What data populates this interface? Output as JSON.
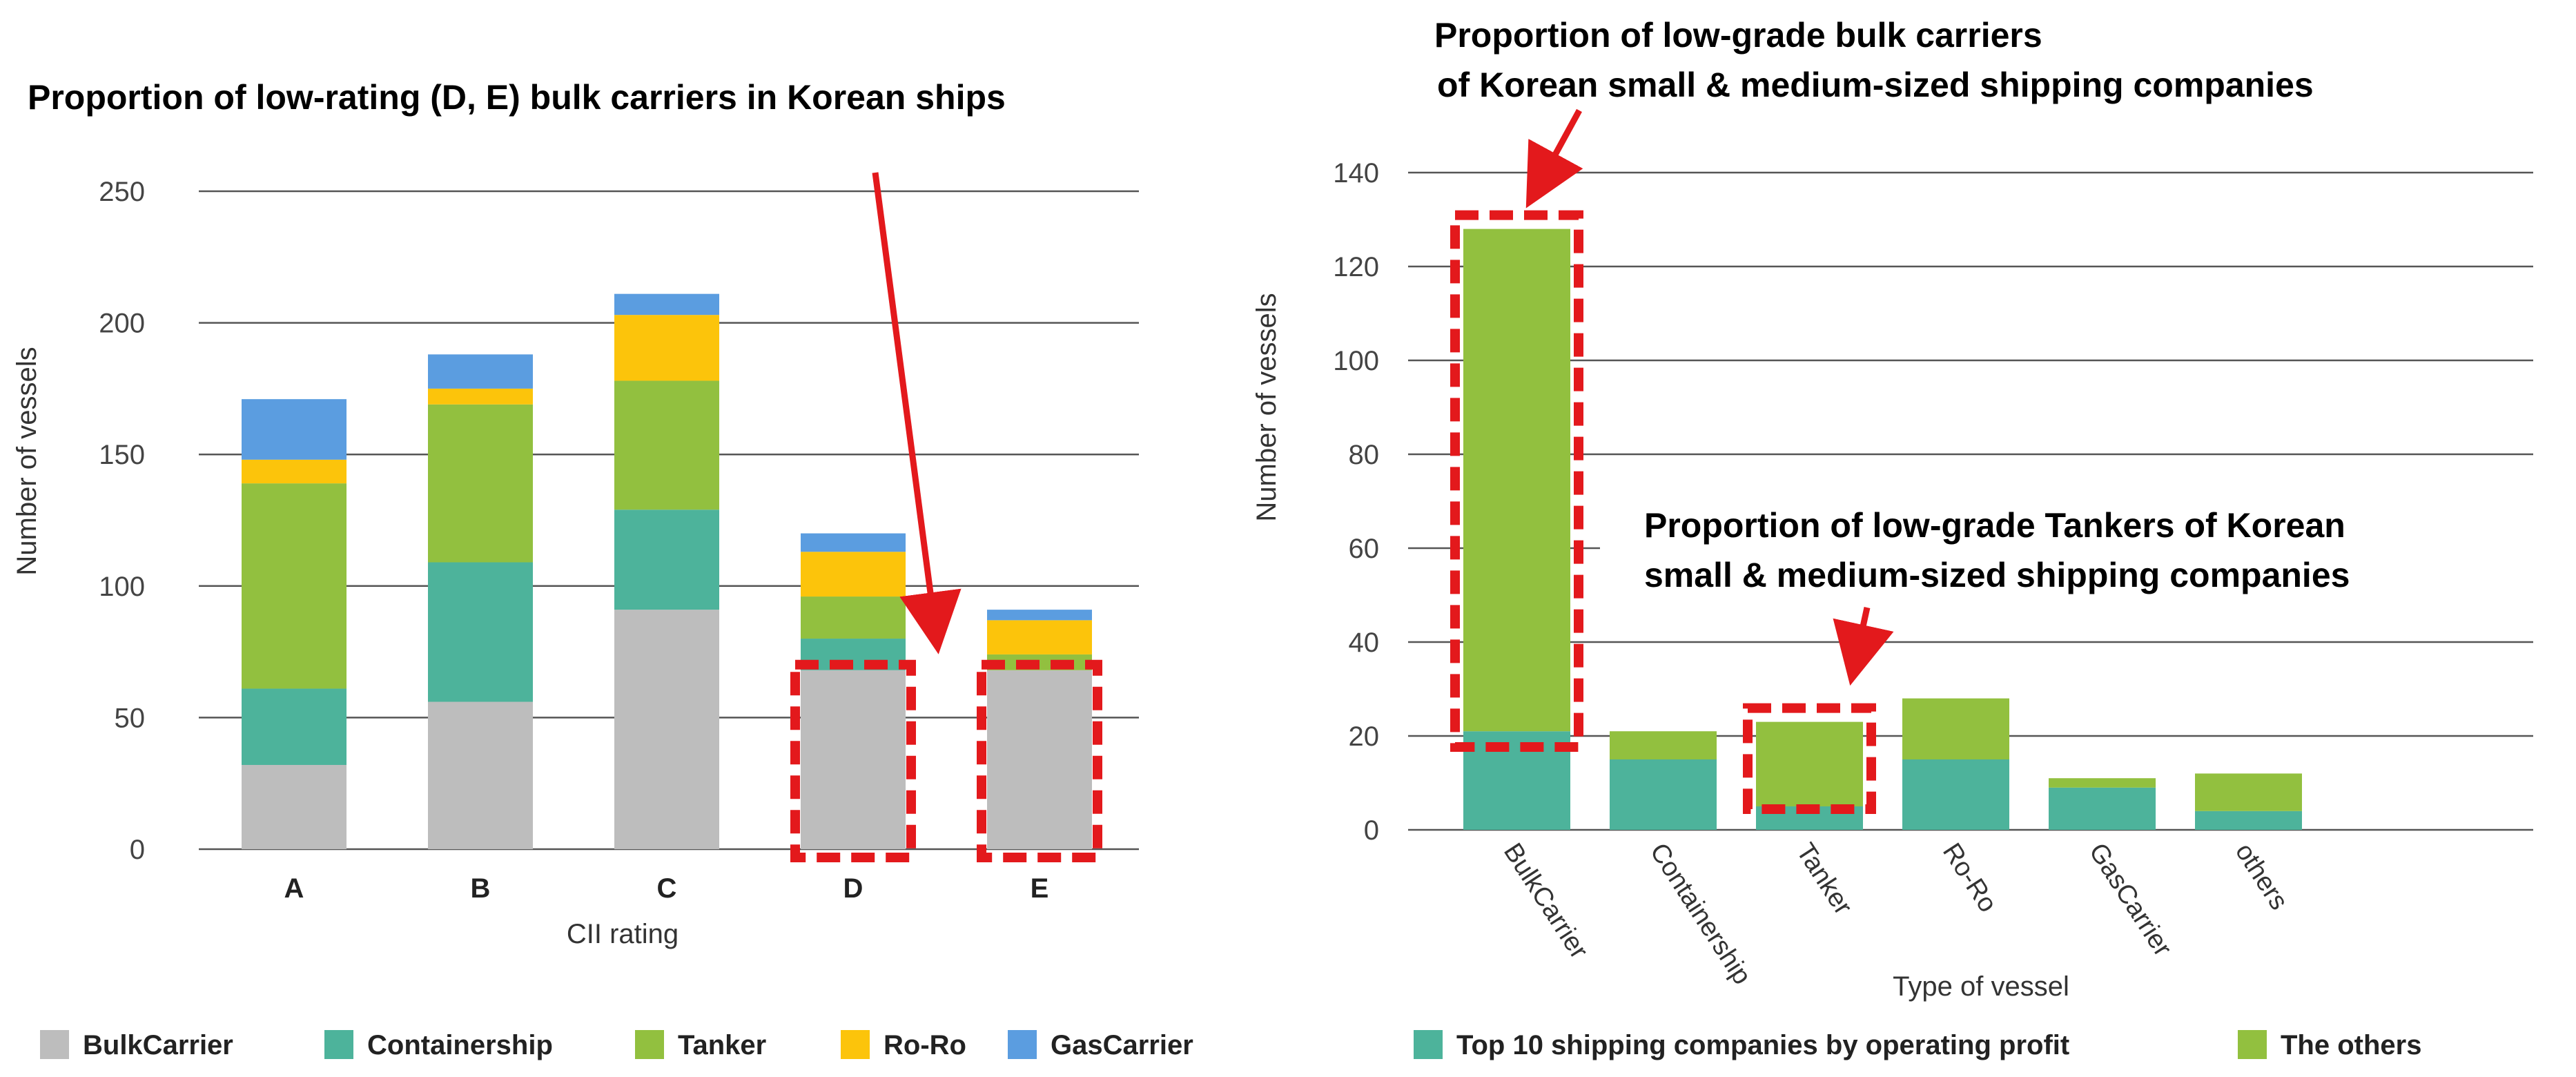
{
  "chart_data": [
    {
      "type": "bar",
      "stacked": true,
      "title": "Proportion of low-rating (D, E) bulk carriers in Korean ships",
      "xlabel": "CII rating",
      "ylabel": "Number of vessels",
      "ylim": [
        0,
        250
      ],
      "yticks": [
        "0",
        "50",
        "100",
        "150",
        "200",
        "250"
      ],
      "categories": [
        "A",
        "B",
        "C",
        "D",
        "E"
      ],
      "series": [
        {
          "name": "BulkCarrier",
          "color": "#bdbdbd",
          "values": [
            32,
            56,
            91,
            68,
            68
          ]
        },
        {
          "name": "Containership",
          "color": "#4db39b",
          "values": [
            29,
            53,
            38,
            12,
            0
          ]
        },
        {
          "name": "Tanker",
          "color": "#92c03f",
          "values": [
            78,
            60,
            49,
            16,
            6
          ]
        },
        {
          "name": "Ro-Ro",
          "color": "#fcc40b",
          "values": [
            9,
            6,
            25,
            17,
            13
          ]
        },
        {
          "name": "GasCarrier",
          "color": "#5b9de0",
          "values": [
            23,
            13,
            8,
            7,
            4
          ]
        }
      ],
      "grid": true,
      "legend": "bottom",
      "highlight_categories": [
        "D",
        "E"
      ]
    },
    {
      "type": "bar",
      "stacked": true,
      "xlabel": "Type of vessel",
      "ylabel": "Number of vessels",
      "ylim": [
        0,
        140
      ],
      "yticks": [
        "0",
        "20",
        "40",
        "60",
        "80",
        "100",
        "120",
        "140"
      ],
      "categories": [
        "BulkCarrier",
        "Containership",
        "Tanker",
        "Ro-Ro",
        "GasCarrier",
        "others"
      ],
      "series": [
        {
          "name": "Top 10 shipping companies by operating profit",
          "color": "#4db39b",
          "values": [
            21,
            15,
            5,
            15,
            9,
            4
          ]
        },
        {
          "name": "The others",
          "color": "#92c03f",
          "values": [
            107,
            6,
            18,
            13,
            2,
            8
          ]
        }
      ],
      "grid": true,
      "legend": "bottom",
      "annotations": [
        {
          "text_line1": "Proportion of low-grade bulk carriers",
          "text_line2": "of Korean small & medium-sized shipping companies",
          "target": "BulkCarrier"
        },
        {
          "text_line1": "Proportion of low-grade Tankers of Korean",
          "text_line2": "small & medium-sized shipping companies",
          "target": "Tanker"
        }
      ]
    }
  ],
  "colors": {
    "highlight": "#e3191c",
    "grid": "#555555",
    "arrow": "#e3191c"
  }
}
